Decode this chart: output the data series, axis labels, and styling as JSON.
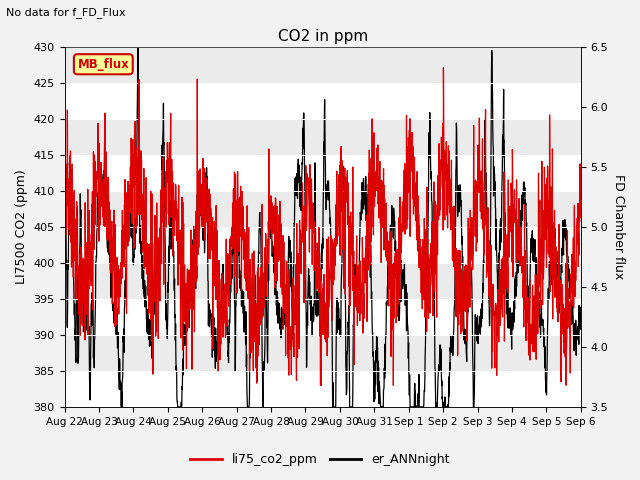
{
  "title": "CO2 in ppm",
  "subtitle": "No data for f_FD_Flux",
  "ylabel_left": "LI7500 CO2 (ppm)",
  "ylabel_right": "FD Chamber flux",
  "ylim_left": [
    380,
    430
  ],
  "ylim_right": [
    3.5,
    6.5
  ],
  "yticks_left": [
    380,
    385,
    390,
    395,
    400,
    405,
    410,
    415,
    420,
    425,
    430
  ],
  "yticks_right": [
    3.5,
    4.0,
    4.5,
    5.0,
    5.5,
    6.0,
    6.5
  ],
  "xtick_labels": [
    "Aug 22",
    "Aug 23",
    "Aug 24",
    "Aug 25",
    "Aug 26",
    "Aug 27",
    "Aug 28",
    "Aug 29",
    "Aug 30",
    "Aug 31",
    "Sep 1",
    "Sep 2",
    "Sep 3",
    "Sep 4",
    "Sep 5",
    "Sep 6"
  ],
  "legend_label1": "li75_co2_ppm",
  "legend_label2": "er_ANNnight",
  "legend_box_label": "MB_flux",
  "legend_box_color": "#cc0000",
  "legend_box_bg": "#ffff99",
  "line1_color": "#dd0000",
  "line2_color": "#000000",
  "bg_light": "#ebebeb",
  "bg_dark": "#d8d8d8",
  "gridcolor": "#ffffff"
}
